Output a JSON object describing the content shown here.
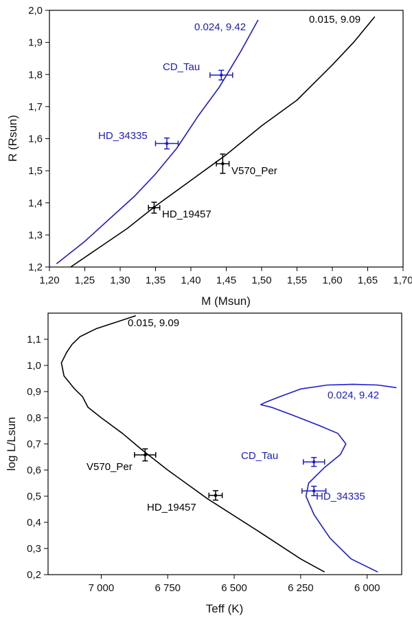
{
  "colors": {
    "black_series": "#000000",
    "blue_series": "#1a1acc",
    "axis": "#000000"
  },
  "chart_data": [
    {
      "type": "line",
      "id": "mass-radius",
      "xlabel": "M (Msun)",
      "ylabel": "R (Rsun)",
      "xlim": [
        1.2,
        1.7
      ],
      "ylim": [
        1.2,
        2.0
      ],
      "xticks": [
        1.2,
        1.25,
        1.3,
        1.35,
        1.4,
        1.45,
        1.5,
        1.55,
        1.6,
        1.65,
        1.7
      ],
      "xtick_labels": [
        "1,20",
        "1,25",
        "1,30",
        "1,35",
        "1,40",
        "1,45",
        "1,50",
        "1,55",
        "1,60",
        "1,65",
        "1,70"
      ],
      "yticks": [
        1.2,
        1.3,
        1.4,
        1.5,
        1.6,
        1.7,
        1.8,
        1.9,
        2.0
      ],
      "ytick_labels": [
        "1,2",
        "1,3",
        "1,4",
        "1,5",
        "1,6",
        "1,7",
        "1,8",
        "1,9",
        "2,0"
      ],
      "series": [
        {
          "name": "0.015, 9.09",
          "color": "black",
          "x": [
            1.23,
            1.27,
            1.31,
            1.35,
            1.4,
            1.45,
            1.5,
            1.55,
            1.6,
            1.63,
            1.66
          ],
          "y": [
            1.2,
            1.26,
            1.32,
            1.39,
            1.47,
            1.55,
            1.64,
            1.72,
            1.83,
            1.9,
            1.98
          ]
        },
        {
          "name": "0.024, 9.42",
          "color": "blue",
          "x": [
            1.21,
            1.25,
            1.29,
            1.32,
            1.35,
            1.38,
            1.41,
            1.44,
            1.47,
            1.495
          ],
          "y": [
            1.21,
            1.28,
            1.36,
            1.42,
            1.49,
            1.57,
            1.67,
            1.76,
            1.87,
            1.97
          ]
        }
      ],
      "points": [
        {
          "name": "CD_Tau",
          "color": "blue",
          "x": 1.443,
          "y": 1.798,
          "xerr": 0.016,
          "yerr": 0.015
        },
        {
          "name": "HD_34335",
          "color": "blue",
          "x": 1.366,
          "y": 1.585,
          "xerr": 0.016,
          "yerr": 0.017
        },
        {
          "name": "V570_Per",
          "color": "black",
          "x": 1.445,
          "y": 1.522,
          "xerr": 0.009,
          "yerr": 0.03
        },
        {
          "name": "HD_19457",
          "color": "black",
          "x": 1.348,
          "y": 1.385,
          "xerr": 0.008,
          "yerr": 0.017
        }
      ],
      "annotations": [
        {
          "text": "0.024, 9.42",
          "color": "blue"
        },
        {
          "text": "0.015, 9.09",
          "color": "black"
        },
        {
          "text": "CD_Tau",
          "color": "blue"
        },
        {
          "text": "HD_34335",
          "color": "blue"
        },
        {
          "text": "V570_Per",
          "color": "black"
        },
        {
          "text": "HD_19457",
          "color": "black"
        }
      ]
    },
    {
      "type": "line",
      "id": "hr-diagram",
      "xlabel": "Teff (K)",
      "ylabel": "log L/Lsun",
      "xlim": [
        7200,
        5870
      ],
      "ylim": [
        0.2,
        1.2
      ],
      "xticks": [
        7000,
        6750,
        6500,
        6250,
        6000
      ],
      "xtick_labels": [
        "7 000",
        "6 750",
        "6 500",
        "6 250",
        "6 000"
      ],
      "yticks": [
        0.2,
        0.3,
        0.4,
        0.5,
        0.6,
        0.7,
        0.8,
        0.9,
        1.0,
        1.1
      ],
      "ytick_labels": [
        "0,2",
        "0,3",
        "0,4",
        "0,5",
        "0,6",
        "0,7",
        "0,8",
        "0,9",
        "1,0",
        "1,1"
      ],
      "series": [
        {
          "name": "0.015, 9.09",
          "color": "black",
          "x": [
            6870,
            6930,
            7020,
            7080,
            7110,
            7130,
            7150,
            7140,
            7100,
            7070,
            7060,
            7050,
            7000,
            6920,
            6850,
            6750,
            6600,
            6400,
            6250,
            6160
          ],
          "y": [
            1.19,
            1.17,
            1.14,
            1.11,
            1.08,
            1.05,
            1.01,
            0.96,
            0.91,
            0.88,
            0.86,
            0.84,
            0.8,
            0.74,
            0.68,
            0.6,
            0.49,
            0.36,
            0.26,
            0.21
          ]
        },
        {
          "name": "0.024, 9.42",
          "color": "blue",
          "x": [
            5890,
            5960,
            6050,
            6150,
            6250,
            6330,
            6380,
            6400,
            6360,
            6280,
            6180,
            6110,
            6080,
            6100,
            6160,
            6220,
            6230,
            6200,
            6140,
            6060,
            5960
          ],
          "y": [
            0.915,
            0.925,
            0.928,
            0.925,
            0.91,
            0.88,
            0.86,
            0.85,
            0.84,
            0.81,
            0.77,
            0.74,
            0.7,
            0.66,
            0.61,
            0.55,
            0.5,
            0.43,
            0.34,
            0.26,
            0.21
          ]
        }
      ],
      "points": [
        {
          "name": "V570_Per",
          "color": "black",
          "x": 6835,
          "y": 0.658,
          "xerr": 40,
          "yerr": 0.023
        },
        {
          "name": "HD_19457",
          "color": "black",
          "x": 6570,
          "y": 0.503,
          "xerr": 25,
          "yerr": 0.018
        },
        {
          "name": "CD_Tau",
          "color": "blue",
          "x": 6200,
          "y": 0.631,
          "xerr": 40,
          "yerr": 0.017
        },
        {
          "name": "HD_34335",
          "color": "blue",
          "x": 6200,
          "y": 0.52,
          "xerr": 45,
          "yerr": 0.018
        }
      ],
      "annotations": [
        {
          "text": "0.015, 9.09",
          "color": "black"
        },
        {
          "text": "0.024, 9.42",
          "color": "blue"
        },
        {
          "text": "V570_Per",
          "color": "black"
        },
        {
          "text": "HD_19457",
          "color": "black"
        },
        {
          "text": "CD_Tau",
          "color": "blue"
        },
        {
          "text": "HD_34335",
          "color": "blue"
        }
      ]
    }
  ]
}
